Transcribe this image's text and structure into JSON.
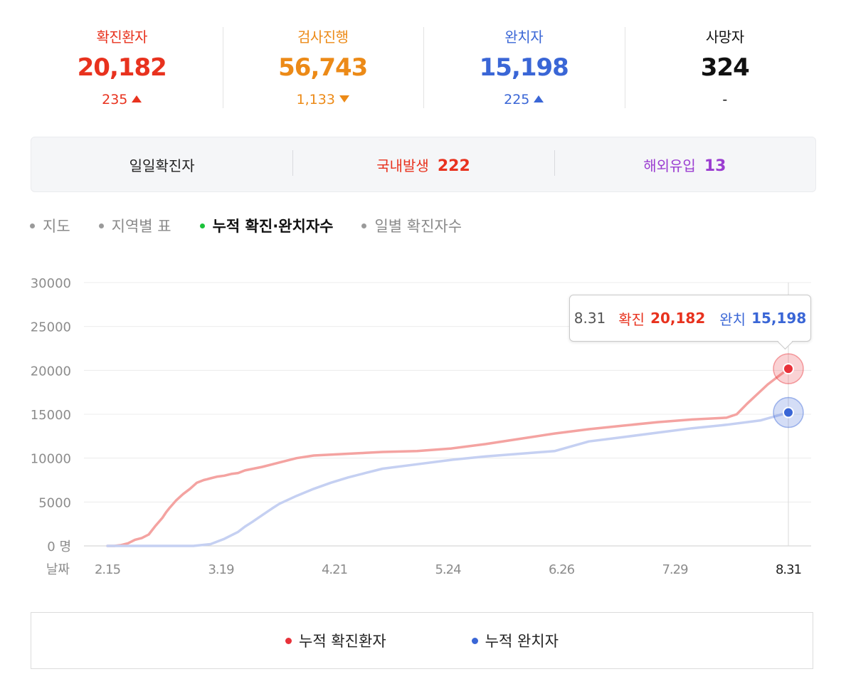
{
  "stats": [
    {
      "label": "확진환자",
      "value": "20,182",
      "change": "235",
      "dir": "up",
      "color": "#e8321e"
    },
    {
      "label": "검사진행",
      "value": "56,743",
      "change": "1,133",
      "dir": "down",
      "color": "#ec8a17"
    },
    {
      "label": "완치자",
      "value": "15,198",
      "change": "225",
      "dir": "up",
      "color": "#3a66d6"
    },
    {
      "label": "사망자",
      "value": "324",
      "change": "-",
      "dir": "none",
      "color": "#111111"
    }
  ],
  "daily": {
    "title": "일일확진자",
    "domestic_label": "국내발생",
    "domestic_value": "222",
    "overseas_label": "해외유입",
    "overseas_value": "13",
    "domestic_color": "#e8321e",
    "overseas_color": "#9b3dd1"
  },
  "tabs": [
    {
      "label": "지도",
      "active": false
    },
    {
      "label": "지역별 표",
      "active": false
    },
    {
      "label": "누적 확진·완치자수",
      "active": true
    },
    {
      "label": "일별 확진자수",
      "active": false
    }
  ],
  "tooltip": {
    "date": "8.31",
    "confirmed_label": "확진",
    "confirmed_value": "20,182",
    "recovered_label": "완치",
    "recovered_value": "15,198"
  },
  "legend": {
    "confirmed": "누적 확진환자",
    "recovered": "누적 완치자"
  },
  "chart_data": {
    "type": "line",
    "ylim": [
      0,
      30000
    ],
    "yticks": [
      0,
      5000,
      10000,
      15000,
      20000,
      25000,
      30000
    ],
    "ytick_labels": [
      "0 명",
      "5000",
      "10000",
      "15000",
      "20000",
      "25000",
      "30000"
    ],
    "xlabel": "날짜",
    "x_ticks": [
      "2.15",
      "3.19",
      "4.21",
      "5.24",
      "6.26",
      "7.29",
      "8.31"
    ],
    "x_range_days": [
      0,
      198
    ],
    "series": [
      {
        "name": "누적 확진환자",
        "color": "#f4a3a1",
        "marker_color": "#e8323a",
        "x": [
          0,
          2,
          4,
          6,
          8,
          10,
          12,
          14,
          16,
          17,
          18,
          20,
          22,
          24,
          26,
          28,
          29,
          30,
          32,
          34,
          36,
          38,
          40,
          45,
          50,
          55,
          60,
          65,
          70,
          75,
          80,
          90,
          100,
          110,
          120,
          130,
          140,
          150,
          160,
          170,
          180,
          183,
          186,
          189,
          192,
          195,
          198
        ],
        "y": [
          0,
          0,
          100,
          300,
          700,
          900,
          1300,
          2300,
          3200,
          3800,
          4300,
          5200,
          5900,
          6500,
          7200,
          7500,
          7600,
          7700,
          7900,
          8000,
          8200,
          8300,
          8600,
          9000,
          9500,
          10000,
          10300,
          10400,
          10500,
          10600,
          10700,
          10800,
          11100,
          11600,
          12200,
          12800,
          13300,
          13700,
          14100,
          14400,
          14600,
          15000,
          16200,
          17300,
          18400,
          19300,
          20182
        ]
      },
      {
        "name": "누적 완치자",
        "color": "#c5d0f2",
        "marker_color": "#3a66d6",
        "x": [
          0,
          10,
          20,
          25,
          30,
          32,
          34,
          36,
          38,
          40,
          42,
          45,
          48,
          50,
          55,
          60,
          65,
          70,
          75,
          80,
          90,
          100,
          110,
          120,
          130,
          140,
          150,
          160,
          170,
          180,
          190,
          198
        ],
        "y": [
          0,
          0,
          0,
          0,
          200,
          500,
          800,
          1200,
          1600,
          2200,
          2700,
          3500,
          4300,
          4800,
          5700,
          6500,
          7200,
          7800,
          8300,
          8800,
          9300,
          9800,
          10200,
          10500,
          10800,
          11900,
          12400,
          12900,
          13400,
          13800,
          14300,
          15198
        ]
      }
    ]
  }
}
